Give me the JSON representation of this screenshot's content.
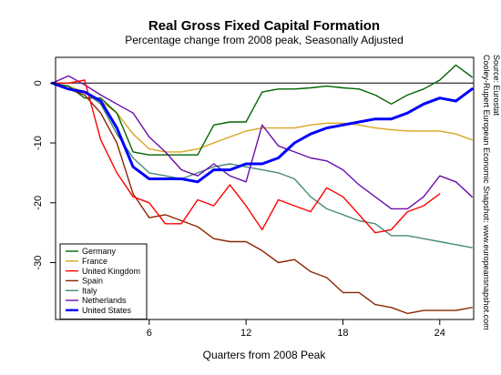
{
  "chart_data": {
    "type": "line",
    "title": "Real Gross Fixed Capital Formation",
    "subtitle": "Percentage change from 2008 peak, Seasonally Adjusted",
    "xlabel": "Quarters from 2008 Peak",
    "ylabel": "",
    "xlim": [
      0.2,
      26.1
    ],
    "ylim": [
      -39.5,
      4.3
    ],
    "xticks": [
      6,
      12,
      18,
      24
    ],
    "yticks": [
      0,
      -10,
      -20,
      -30
    ],
    "grid": false,
    "legend_position": "bottom-left",
    "source_lines": [
      "Cooley-Rupert European Economic Snapshot: www.europeansnapshot.com",
      "Source: Eurostat"
    ],
    "x": [
      0,
      1,
      2,
      3,
      4,
      5,
      6,
      7,
      8,
      9,
      10,
      11,
      12,
      13,
      14,
      15,
      16,
      17,
      18,
      19,
      20,
      21,
      22,
      23,
      24,
      25,
      26
    ],
    "series": [
      {
        "name": "Germany",
        "color": "#006400",
        "width": 1.4,
        "values": [
          0,
          -0.5,
          -2.5,
          -2.5,
          -5,
          -11.5,
          -12,
          -12,
          -12,
          -12,
          -7,
          -6.5,
          -6.5,
          -1.5,
          -1,
          -1,
          -0.8,
          -0.5,
          -0.8,
          -1,
          -2,
          -3.5,
          -2,
          -1,
          0.5,
          3,
          1
        ]
      },
      {
        "name": "France",
        "color": "#DAA520",
        "width": 1.4,
        "values": [
          0,
          -0.5,
          -1.5,
          -3,
          -5,
          -8.5,
          -11,
          -11.5,
          -11.5,
          -11,
          -10,
          -9,
          -8,
          -7.5,
          -7.5,
          -7.5,
          -7,
          -6.7,
          -6.7,
          -7,
          -7.5,
          -7.8,
          -8,
          -8,
          -8,
          -8.5,
          -9.5
        ]
      },
      {
        "name": "United Kingdom",
        "color": "#FF0000",
        "width": 1.4,
        "values": [
          0,
          0,
          0.5,
          -9.5,
          -15,
          -19,
          -20,
          -23.5,
          -23.5,
          -19.5,
          -20.5,
          -17,
          -20.5,
          -24.5,
          -19.5,
          -20.5,
          -21.5,
          -17.5,
          -19,
          -22,
          -25,
          -24.5,
          -21.5,
          -20.5,
          -18.5,
          null,
          null
        ]
      },
      {
        "name": "Spain",
        "color": "#8B2500",
        "width": 1.4,
        "values": [
          0,
          -1,
          -2,
          -5,
          -10,
          -18.5,
          -22.5,
          -22,
          -23,
          -24,
          -26,
          -26.5,
          -26.5,
          -28,
          -30,
          -29.5,
          -31.5,
          -32.5,
          -35,
          -35,
          -37,
          -37.5,
          -38.5,
          -38,
          -38,
          -38,
          -37.5
        ]
      },
      {
        "name": "Italy",
        "color": "#458B74",
        "width": 1.4,
        "values": [
          0,
          -1,
          -1.5,
          -3.5,
          -8.5,
          -12.5,
          -15,
          -15.5,
          -16,
          -15,
          -14,
          -13.5,
          -14,
          -14.5,
          -15,
          -16,
          -19,
          -21,
          -22,
          -23,
          -23.5,
          -25.5,
          -25.5,
          -26,
          -26.5,
          -27,
          -27.5
        ]
      },
      {
        "name": "Netherlands",
        "color": "#6A0DAD",
        "width": 1.4,
        "values": [
          0,
          1.2,
          -0.3,
          -2,
          -3.5,
          -5,
          -9,
          -11.5,
          -14.5,
          -15.5,
          -13.5,
          -15.5,
          -16.5,
          -7,
          -10.5,
          -11.5,
          -12.5,
          -13,
          -14.5,
          -17,
          -19,
          -21,
          -21,
          -19,
          -15.5,
          -16.5,
          -19
        ]
      },
      {
        "name": "United States",
        "color": "#0000FF",
        "width": 3,
        "values": [
          0,
          -1,
          -1.5,
          -3,
          -7.5,
          -14,
          -16,
          -16,
          -16,
          -16.5,
          -14.5,
          -14.5,
          -13.5,
          -13.5,
          -12.5,
          -10,
          -8.5,
          -7.5,
          -7,
          -6.5,
          -6,
          -6,
          -5,
          -3.5,
          -2.5,
          -3,
          -1
        ]
      }
    ]
  }
}
